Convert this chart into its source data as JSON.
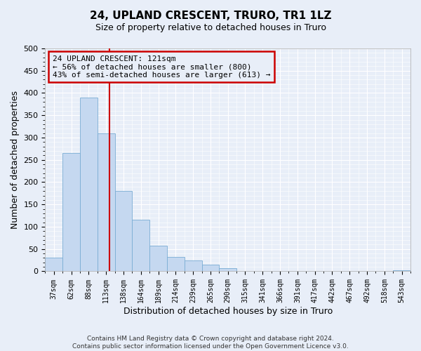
{
  "title": "24, UPLAND CRESCENT, TRURO, TR1 1LZ",
  "subtitle": "Size of property relative to detached houses in Truro",
  "xlabel": "Distribution of detached houses by size in Truro",
  "ylabel": "Number of detached properties",
  "bar_labels": [
    "37sqm",
    "62sqm",
    "88sqm",
    "113sqm",
    "138sqm",
    "164sqm",
    "189sqm",
    "214sqm",
    "239sqm",
    "265sqm",
    "290sqm",
    "315sqm",
    "341sqm",
    "366sqm",
    "391sqm",
    "417sqm",
    "442sqm",
    "467sqm",
    "492sqm",
    "518sqm",
    "543sqm"
  ],
  "bar_values": [
    30,
    265,
    390,
    310,
    180,
    115,
    58,
    32,
    25,
    15,
    7,
    0,
    0,
    0,
    0,
    0,
    0,
    0,
    0,
    0,
    3
  ],
  "bar_color": "#c5d8f0",
  "bar_edge_color": "#7aadd4",
  "vline_x": 3.68,
  "vline_color": "#cc0000",
  "ylim": [
    0,
    500
  ],
  "yticks": [
    0,
    50,
    100,
    150,
    200,
    250,
    300,
    350,
    400,
    450,
    500
  ],
  "annotation_title": "24 UPLAND CRESCENT: 121sqm",
  "annotation_line1": "← 56% of detached houses are smaller (800)",
  "annotation_line2": "43% of semi-detached houses are larger (613) →",
  "annotation_box_color": "#cc0000",
  "footer_line1": "Contains HM Land Registry data © Crown copyright and database right 2024.",
  "footer_line2": "Contains public sector information licensed under the Open Government Licence v3.0.",
  "bg_color": "#e8eef8",
  "grid_color": "#ffffff",
  "title_fontsize": 11,
  "subtitle_fontsize": 9
}
